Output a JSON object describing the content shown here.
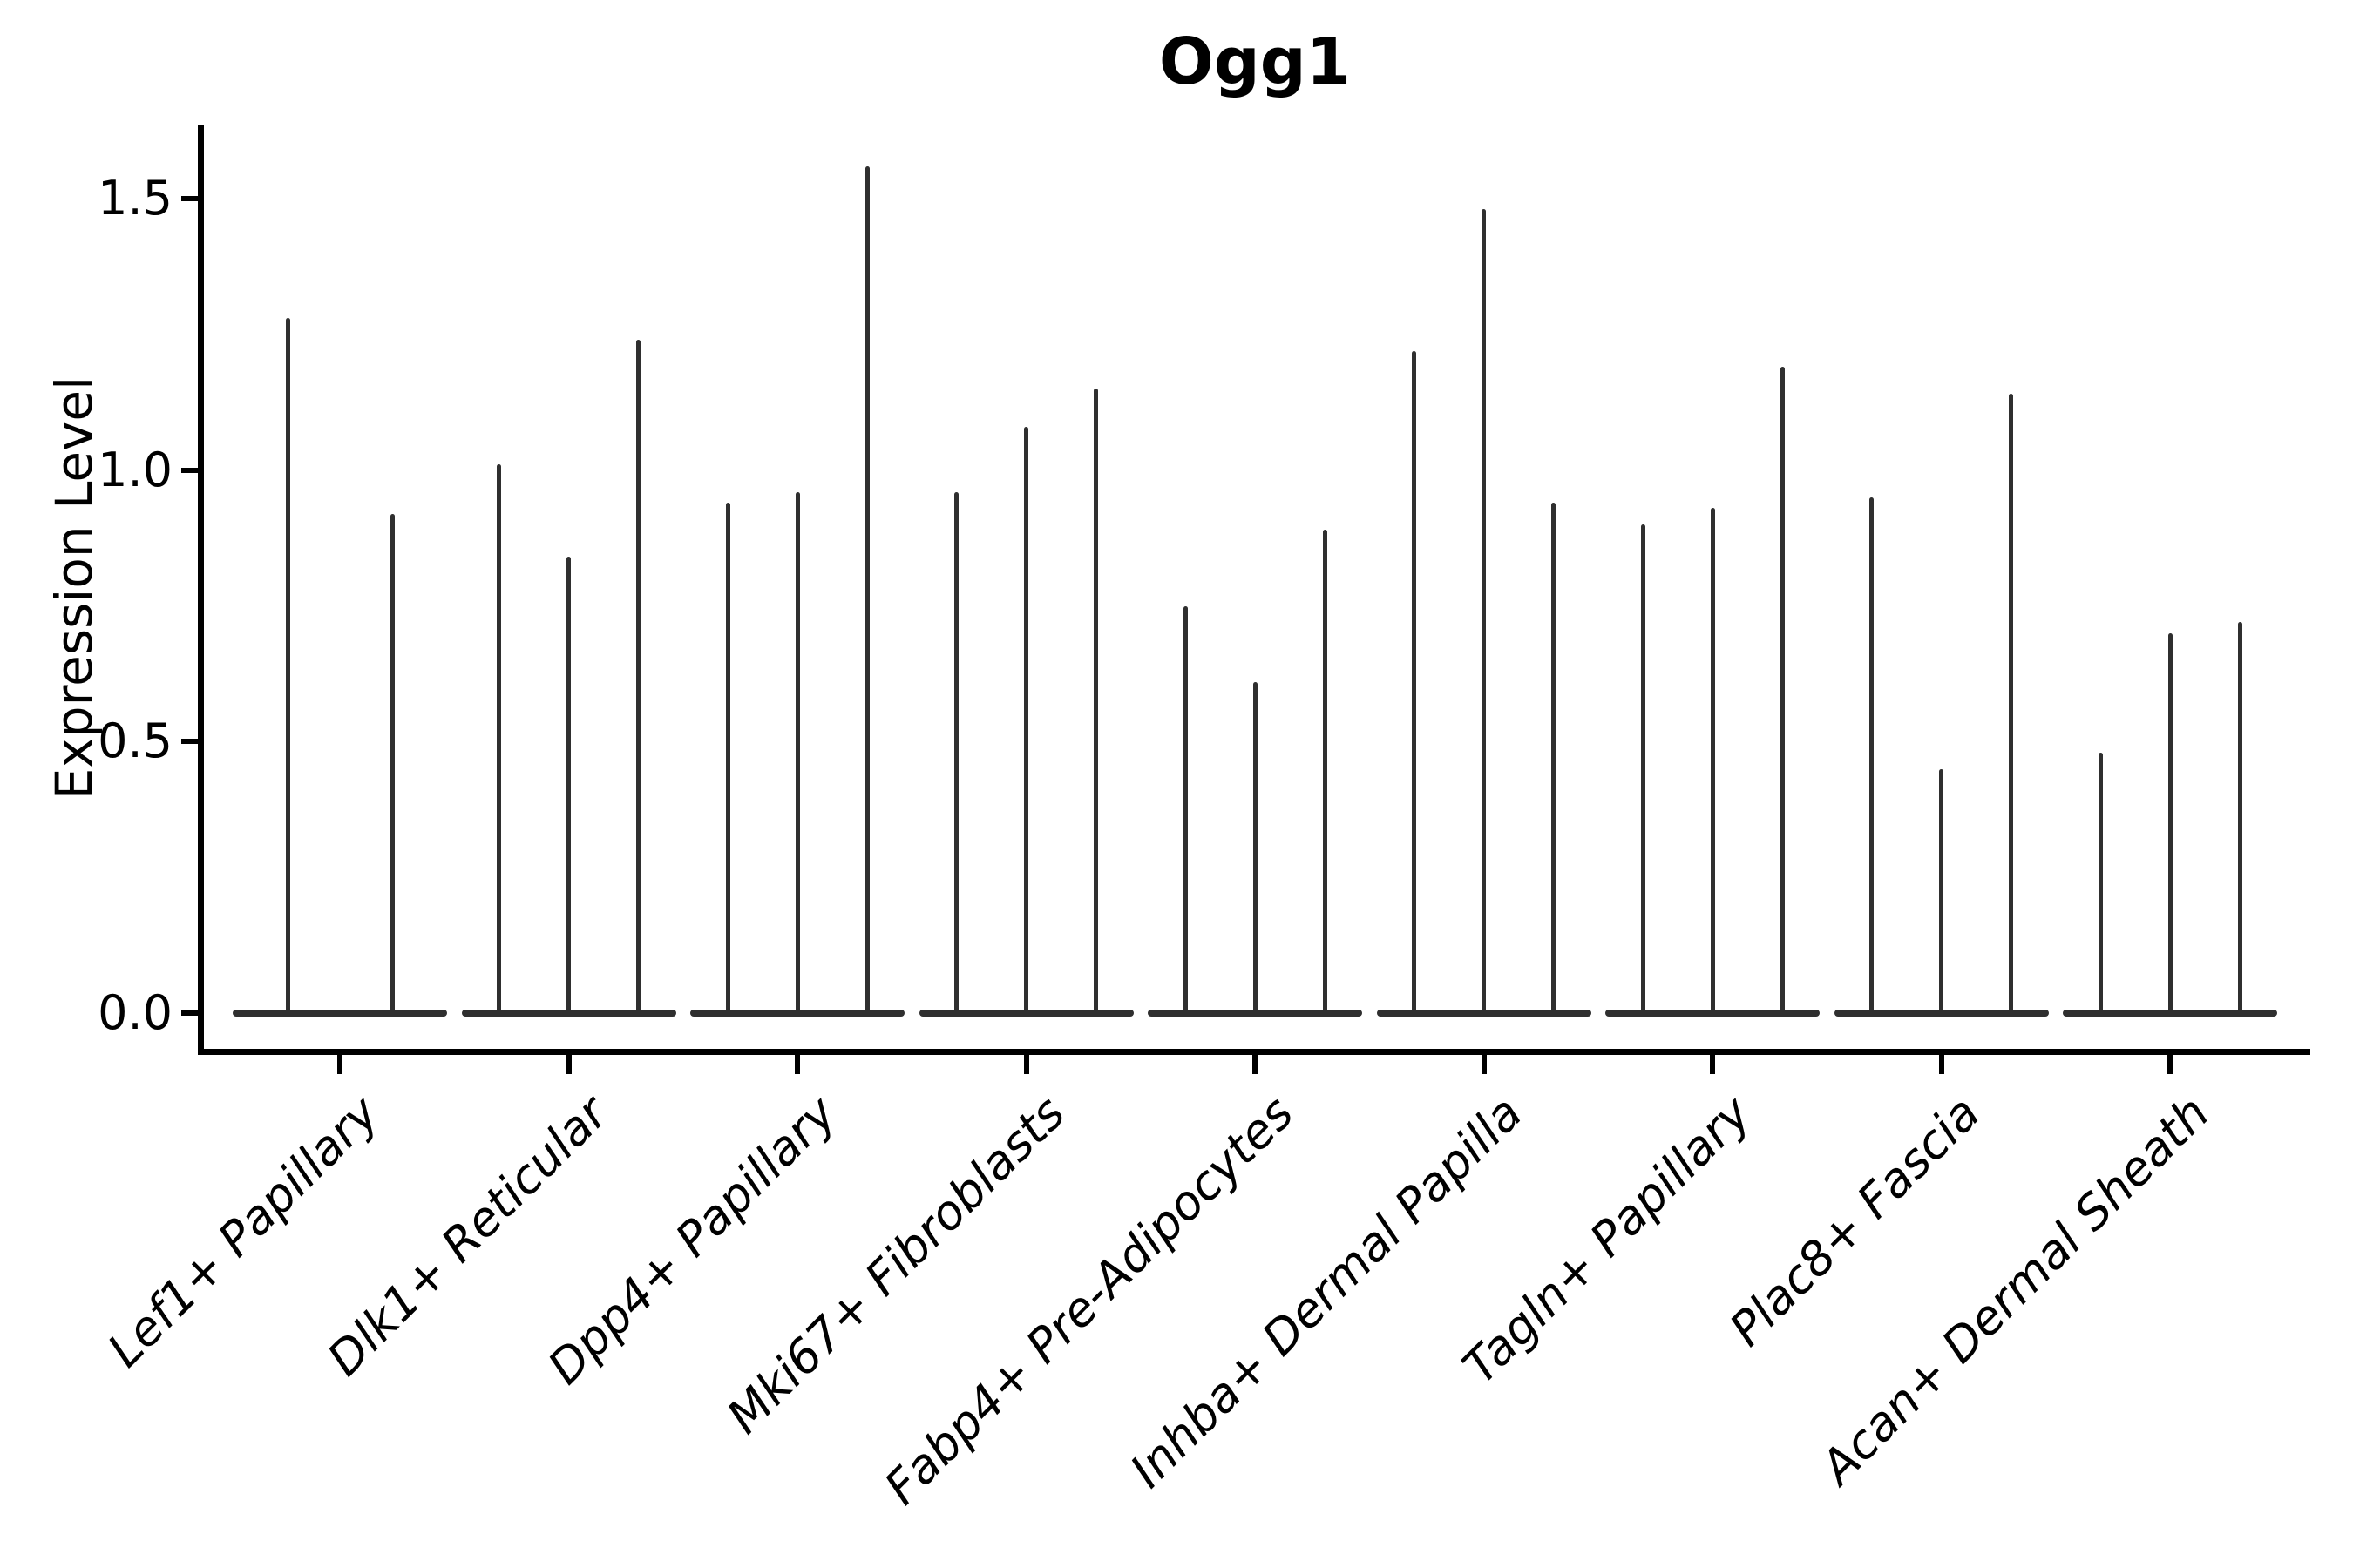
{
  "title": "Ogg1",
  "y_axis": {
    "label": "Expression Level",
    "tick_labels": [
      "0.0",
      "0.5",
      "1.0",
      "1.5"
    ],
    "tick_values": [
      0.0,
      0.5,
      1.0,
      1.5
    ]
  },
  "chart_data": {
    "type": "violin",
    "title": "Ogg1",
    "xlabel": "",
    "ylabel": "Expression Level",
    "ylim": [
      -0.07,
      1.64
    ],
    "yticks": [
      0.0,
      0.5,
      1.0,
      1.5
    ],
    "grid": false,
    "legend": false,
    "x_tick_rotation_deg": 45,
    "description": "Collapsed violins: bulk of cells at 0 expression form a wide flat base per category; each violin shows a thin vertical spike up to its maximum expression value.",
    "categories": [
      "Lef1+ Papillary",
      "Dlk1+ Reticular",
      "Dpp4+ Papillary",
      "Mki67+ Fibroblasts",
      "Fabp4+ Pre-Adipocytes",
      "Inhba+ Dermal Papilla",
      "Tagln+ Papillary",
      "Plac8+ Fascia",
      "Acan+ Dermal Sheath"
    ],
    "groups": [
      {
        "label": "Lef1+ Papillary",
        "violin_spike_maxima": [
          1.28,
          0.92
        ]
      },
      {
        "label": "Dlk1+ Reticular",
        "violin_spike_maxima": [
          1.01,
          0.84,
          1.24
        ]
      },
      {
        "label": "Dpp4+ Papillary",
        "violin_spike_maxima": [
          0.94,
          0.96,
          1.56
        ]
      },
      {
        "label": "Mki67+ Fibroblasts",
        "violin_spike_maxima": [
          0.96,
          1.08,
          1.15
        ]
      },
      {
        "label": "Fabp4+ Pre-Adipocytes",
        "violin_spike_maxima": [
          0.75,
          0.61,
          0.89
        ]
      },
      {
        "label": "Inhba+ Dermal Papilla",
        "violin_spike_maxima": [
          1.22,
          1.48,
          0.94
        ]
      },
      {
        "label": "Tagln+ Papillary",
        "violin_spike_maxima": [
          0.9,
          0.93,
          1.19
        ]
      },
      {
        "label": "Plac8+ Fascia",
        "violin_spike_maxima": [
          0.95,
          0.45,
          1.14
        ]
      },
      {
        "label": "Acan+ Dermal Sheath",
        "violin_spike_maxima": [
          0.48,
          0.7,
          0.72
        ]
      }
    ],
    "colors": {
      "violin": "#2f2f2f",
      "axis": "#000000",
      "background": "#ffffff"
    }
  }
}
